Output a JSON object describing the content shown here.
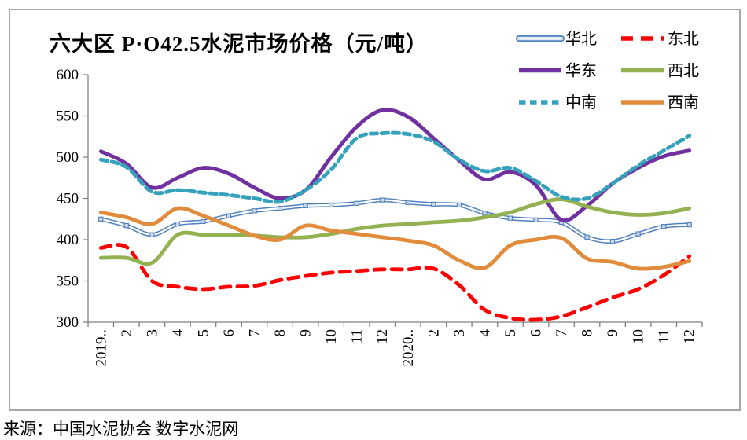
{
  "page": {
    "title": "六大区 P·O42.5水泥市场价格（元/吨）",
    "source_note": "来源：中国水泥协会  数字水泥网"
  },
  "chart_data": {
    "type": "line",
    "title": "六大区 P·O42.5水泥市场价格（元/吨）",
    "xlabel": "",
    "ylabel": "",
    "unit": "元/吨",
    "ylim": [
      300,
      600
    ],
    "ystep": 50,
    "yticks": [
      300,
      350,
      400,
      450,
      500,
      550,
      600
    ],
    "grid": false,
    "smoothed": true,
    "legend_position": "top-right",
    "categories": [
      "2019..",
      "2",
      "3",
      "4",
      "5",
      "6",
      "7",
      "8",
      "9",
      "10",
      "11",
      "12",
      "2020..",
      "2",
      "3",
      "4",
      "5",
      "6",
      "7",
      "8",
      "9",
      "10",
      "11",
      "12"
    ],
    "series": [
      {
        "id": "huabei",
        "name": "华北",
        "color": "#4F81BD",
        "style": "outline-marker",
        "dash": null,
        "values": [
          425,
          417,
          406,
          419,
          422,
          429,
          435,
          438,
          441,
          442,
          444,
          448,
          445,
          443,
          442,
          432,
          426,
          424,
          421,
          403,
          398,
          407,
          416,
          418
        ]
      },
      {
        "id": "dongbei",
        "name": "东北",
        "color": "#FF0000",
        "style": "dash-long",
        "dash": "13 9",
        "values": [
          390,
          391,
          350,
          343,
          340,
          343,
          344,
          351,
          356,
          360,
          362,
          364,
          364,
          365,
          345,
          315,
          305,
          303,
          307,
          318,
          330,
          340,
          357,
          380
        ]
      },
      {
        "id": "huadong",
        "name": "华东",
        "color": "#7030A0",
        "style": "solid",
        "dash": null,
        "values": [
          507,
          492,
          463,
          475,
          487,
          480,
          463,
          450,
          460,
          500,
          537,
          557,
          549,
          523,
          496,
          473,
          482,
          466,
          424,
          441,
          468,
          487,
          501,
          508
        ]
      },
      {
        "id": "xibei",
        "name": "西北",
        "color": "#94B152",
        "style": "solid",
        "dash": null,
        "values": [
          378,
          378,
          372,
          406,
          406,
          406,
          405,
          403,
          403,
          407,
          413,
          417,
          419,
          421,
          423,
          427,
          433,
          443,
          449,
          440,
          433,
          430,
          432,
          438
        ]
      },
      {
        "id": "zhongnan",
        "name": "中南",
        "color": "#35A1BB",
        "style": "dash-short",
        "dash": "8.5 5.5",
        "values": [
          497,
          488,
          458,
          460,
          457,
          454,
          450,
          446,
          460,
          485,
          523,
          529,
          528,
          519,
          497,
          483,
          487,
          471,
          452,
          450,
          468,
          490,
          508,
          526
        ]
      },
      {
        "id": "xinan",
        "name": "西南",
        "color": "#E18C3C",
        "style": "solid",
        "dash": null,
        "values": [
          433,
          427,
          419,
          438,
          429,
          417,
          405,
          400,
          417,
          411,
          407,
          403,
          399,
          393,
          375,
          366,
          393,
          400,
          402,
          377,
          373,
          365,
          367,
          374
        ]
      }
    ]
  }
}
